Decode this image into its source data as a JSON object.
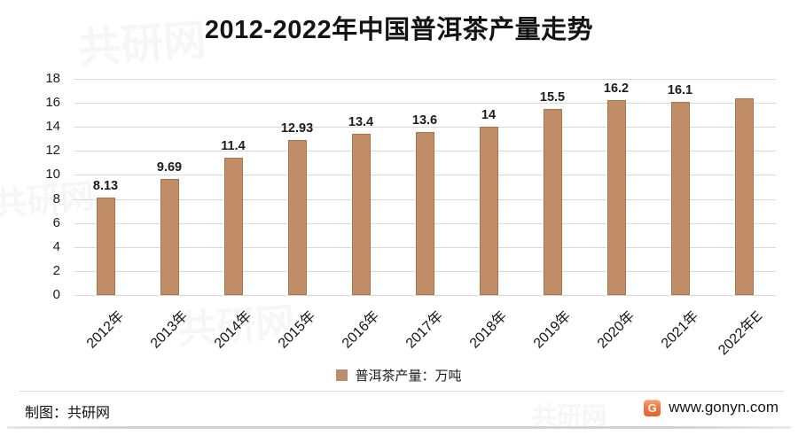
{
  "chart_data": {
    "type": "bar",
    "title": "2012-2022年中国普洱茶产量走势",
    "categories": [
      "2012年",
      "2013年",
      "2014年",
      "2015年",
      "2016年",
      "2017年",
      "2018年",
      "2019年",
      "2020年",
      "2021年",
      "2022年E"
    ],
    "values": [
      8.13,
      9.69,
      11.4,
      12.93,
      13.4,
      13.6,
      14,
      15.5,
      16.2,
      16.1,
      16.4
    ],
    "data_labels": [
      "8.13",
      "9.69",
      "11.4",
      "12.93",
      "13.4",
      "13.6",
      "14",
      "15.5",
      "16.2",
      "16.1",
      ""
    ],
    "ylabel": "",
    "xlabel": "",
    "unit": "万吨",
    "ylim": [
      0,
      18
    ],
    "yticks": [
      0,
      2,
      4,
      6,
      8,
      10,
      12,
      14,
      16,
      18
    ],
    "grid": true,
    "legend": {
      "label": "普洱茶产量：万吨",
      "position": "bottom",
      "swatch_color": "#b98d6e"
    },
    "bar_color": "#c08d66",
    "bar_border_color": "#a3764e"
  },
  "footer": {
    "credit": "制图：共研网",
    "website": "www.gonyn.com",
    "logo_letter": "G"
  },
  "watermark": {
    "text": "共研网"
  }
}
